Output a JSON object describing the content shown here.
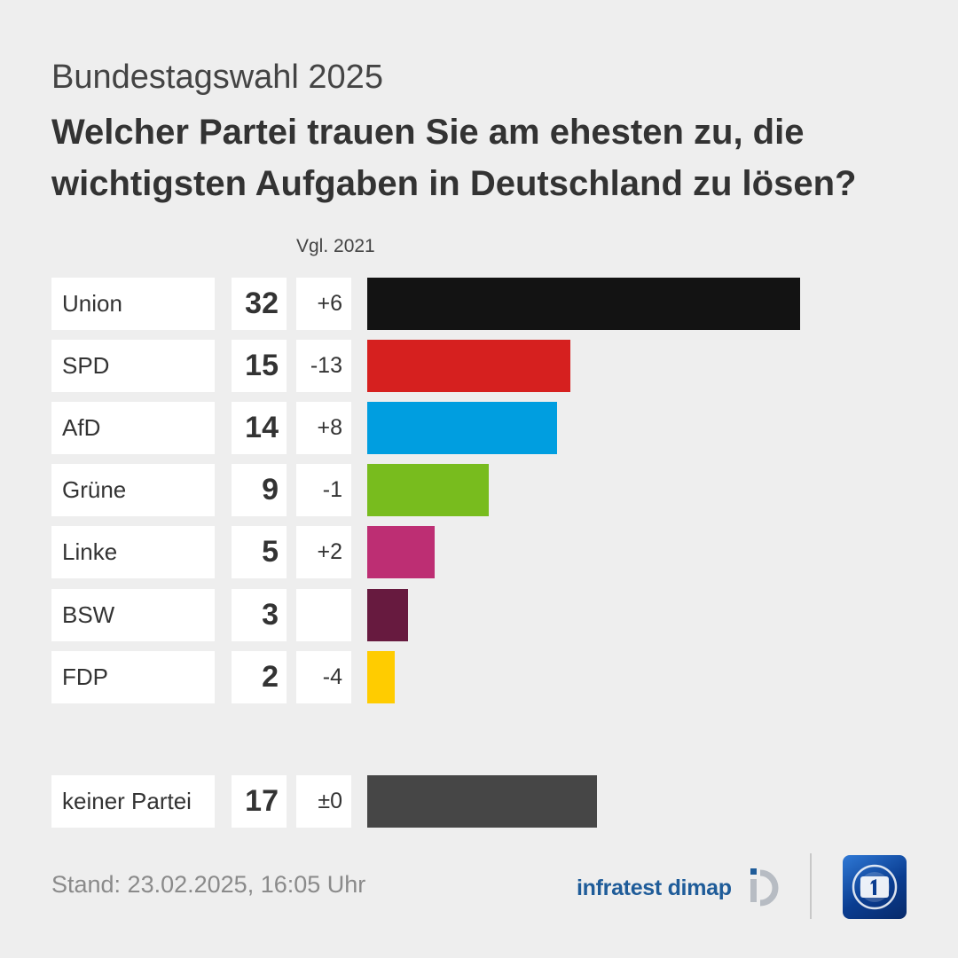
{
  "header": {
    "supertitle": "Bundestagswahl 2025",
    "title": "Welcher Partei trauen Sie am ehesten zu, die wichtigsten Aufgaben in Deutschland zu lösen?",
    "comparison_label": "Vgl. 2021"
  },
  "chart_data": {
    "type": "bar",
    "orientation": "horizontal",
    "title": "Welcher Partei trauen Sie am ehesten zu, die wichtigsten Aufgaben in Deutschland zu lösen?",
    "unit": "%",
    "xlim": [
      0,
      32
    ],
    "grid": false,
    "legend": "none",
    "categories": [
      "Union",
      "SPD",
      "AfD",
      "Grüne",
      "Linke",
      "BSW",
      "FDP",
      "keiner Partei"
    ],
    "values": [
      32,
      15,
      14,
      9,
      5,
      3,
      2,
      17
    ],
    "value_labels": [
      "32",
      "15",
      "14",
      "9",
      "5",
      "3",
      "2",
      "17"
    ],
    "change_vs_2021": [
      "+6",
      "-13",
      "+8",
      "-1",
      "+2",
      "",
      "-4",
      "±0"
    ],
    "colors": [
      "#131313",
      "#d6201f",
      "#009ee0",
      "#78bc1e",
      "#bd2e73",
      "#671a3f",
      "#ffcc00",
      "#464646"
    ]
  },
  "footer": {
    "stand": "Stand:  23.02.2025, 16:05 Uhr",
    "source": "infratest dimap",
    "logo_icon": "tagesschau-logo-icon"
  }
}
